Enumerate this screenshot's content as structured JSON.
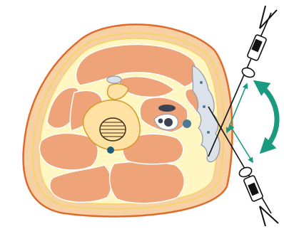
{
  "figure": {
    "palette": {
      "skin": "#F7D1A4",
      "skin_outline": "#E06A2C",
      "fat_layer": "#FFF6C2",
      "fascia": "#F2D46A",
      "muscle": "#EFA378",
      "muscle_outline": "#FFFFFF",
      "bone": "#FFE2A4",
      "bone_outline": "#D89A2C",
      "vessel_dark": "#3C4250",
      "vessel_blue": "#4E7A94",
      "vessel_teal": "#1B5C78",
      "nerve": "#DCE2EA",
      "nerve_outline": "#8E98A8",
      "needle": "#111111",
      "arrow": "#1A9A7E"
    },
    "icons": {
      "rotation_arrow": "curved-double-arrow-icon",
      "transducer_top": "ultrasound-probe-icon",
      "transducer_bottom": "ultrasound-probe-icon"
    }
  }
}
